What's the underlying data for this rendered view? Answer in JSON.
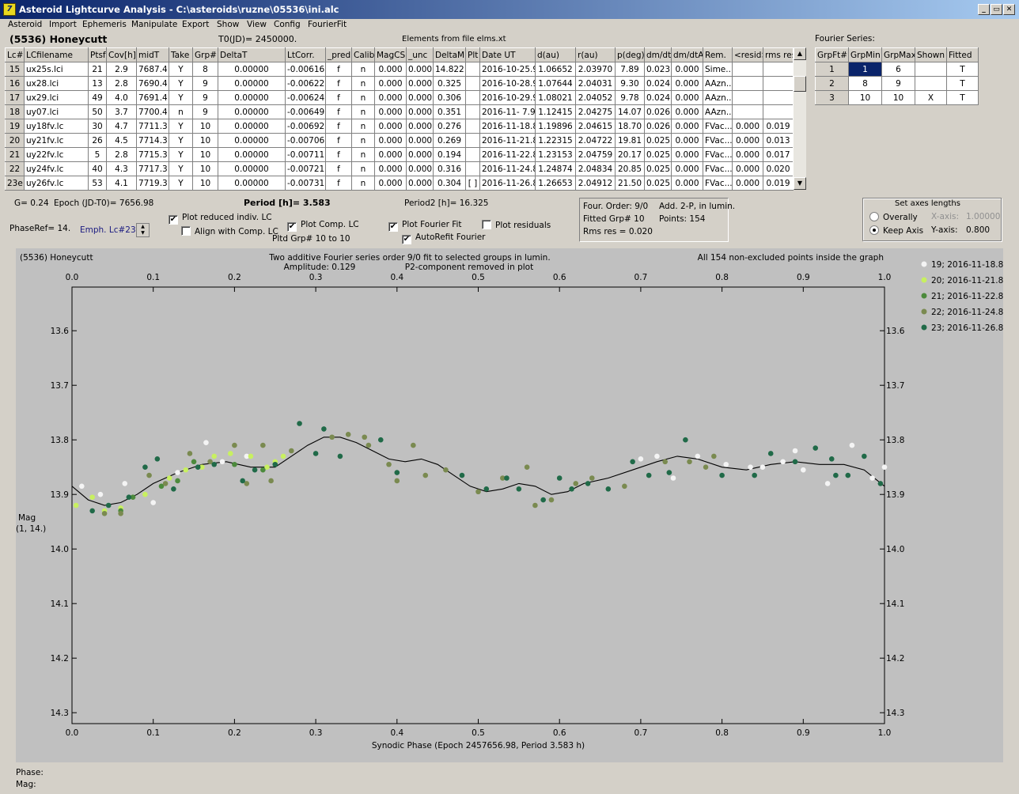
{
  "window": {
    "title": "Asteroid Lightcurve Analysis - C:\\asteroids\\ruzne\\05536\\ini.alc",
    "controls": [
      "_",
      "▭",
      "✕"
    ]
  },
  "menu": [
    "Asteroid",
    "Import",
    "Ephemeris",
    "Manipulate",
    "Export",
    "Show",
    "View",
    "Config",
    "FourierFit"
  ],
  "header": {
    "asteroid_name": "(5536) Honeycutt",
    "t0": "T0(JD)= 2450000.",
    "elements_source": "Elements from file elms.xt"
  },
  "lc_table": {
    "columns": [
      "Lc#",
      "LCfilename",
      "Ptsf",
      "Cov[h]",
      "midT",
      "Take",
      "Grp#",
      "DeltaT",
      "LtCorr.",
      "_pred.",
      "Calib.",
      "MagCS",
      "_unc",
      "DeltaM",
      "Plt",
      "Date UT",
      "d(au)",
      "r(au)",
      "p(deg)",
      "dm/dt",
      "dm/dtA",
      "Rem.",
      "<resid>",
      "rms res"
    ],
    "rows": [
      [
        "15",
        "ux25s.lci",
        "21",
        "2.9",
        "7687.4",
        "Y",
        "8",
        "0.00000",
        "-0.00616",
        "f",
        "n",
        "0.000",
        "0.000",
        "14.822",
        "",
        "2016-10-25.9",
        "1.06652",
        "2.03970",
        "7.89",
        "0.023",
        "0.000",
        "Sime...",
        "",
        ""
      ],
      [
        "16",
        "ux28.lci",
        "13",
        "2.8",
        "7690.4",
        "Y",
        "9",
        "0.00000",
        "-0.00622",
        "f",
        "n",
        "0.000",
        "0.000",
        "0.325",
        "",
        "2016-10-28.9",
        "1.07644",
        "2.04031",
        "9.30",
        "0.024",
        "0.000",
        "AAzn...",
        "",
        ""
      ],
      [
        "17",
        "ux29.lci",
        "49",
        "4.0",
        "7691.4",
        "Y",
        "9",
        "0.00000",
        "-0.00624",
        "f",
        "n",
        "0.000",
        "0.000",
        "0.306",
        "",
        "2016-10-29.9",
        "1.08021",
        "2.04052",
        "9.78",
        "0.024",
        "0.000",
        "AAzn...",
        "",
        ""
      ],
      [
        "18",
        "uy07.lci",
        "50",
        "3.7",
        "7700.4",
        "n",
        "9",
        "0.00000",
        "-0.00649",
        "f",
        "n",
        "0.000",
        "0.000",
        "0.351",
        "",
        "2016-11- 7.9",
        "1.12415",
        "2.04275",
        "14.07",
        "0.026",
        "0.000",
        "AAzn...",
        "",
        ""
      ],
      [
        "19",
        "uy18fv.lc",
        "30",
        "4.7",
        "7711.3",
        "Y",
        "10",
        "0.00000",
        "-0.00692",
        "f",
        "n",
        "0.000",
        "0.000",
        "0.276",
        "",
        "2016-11-18.8",
        "1.19896",
        "2.04615",
        "18.70",
        "0.026",
        "0.000",
        "FVac...",
        "0.000",
        "0.019"
      ],
      [
        "20",
        "uy21fv.lc",
        "26",
        "4.5",
        "7714.3",
        "Y",
        "10",
        "0.00000",
        "-0.00706",
        "f",
        "n",
        "0.000",
        "0.000",
        "0.269",
        "",
        "2016-11-21.8",
        "1.22315",
        "2.04722",
        "19.81",
        "0.025",
        "0.000",
        "FVac...",
        "0.000",
        "0.013"
      ],
      [
        "21",
        "uy22fv.lc",
        "5",
        "2.8",
        "7715.3",
        "Y",
        "10",
        "0.00000",
        "-0.00711",
        "f",
        "n",
        "0.000",
        "0.000",
        "0.194",
        "",
        "2016-11-22.8",
        "1.23153",
        "2.04759",
        "20.17",
        "0.025",
        "0.000",
        "FVac...",
        "0.000",
        "0.017"
      ],
      [
        "22",
        "uy24fv.lc",
        "40",
        "4.3",
        "7717.3",
        "Y",
        "10",
        "0.00000",
        "-0.00721",
        "f",
        "n",
        "0.000",
        "0.000",
        "0.316",
        "",
        "2016-11-24.8",
        "1.24874",
        "2.04834",
        "20.85",
        "0.025",
        "0.000",
        "FVac...",
        "0.000",
        "0.020"
      ],
      [
        "23e",
        "uy26fv.lc",
        "53",
        "4.1",
        "7719.3",
        "Y",
        "10",
        "0.00000",
        "-0.00731",
        "f",
        "n",
        "0.000",
        "0.000",
        "0.304",
        "[ ]",
        "2016-11-26.8",
        "1.26653",
        "2.04912",
        "21.50",
        "0.025",
        "0.000",
        "FVac...",
        "0.000",
        "0.019"
      ]
    ]
  },
  "fourier_series": {
    "label": "Fourier Series:",
    "columns": [
      "GrpFt#",
      "GrpMin",
      "GrpMax",
      "Shown",
      "Fitted"
    ],
    "rows": [
      [
        "1",
        "1",
        "6",
        "",
        "T"
      ],
      [
        "2",
        "8",
        "9",
        "",
        "T"
      ],
      [
        "3",
        "10",
        "10",
        "X",
        "T"
      ]
    ]
  },
  "controls": {
    "g": "G= 0.24",
    "epoch": "Epoch (JD-T0)= 7656.98",
    "period": "Period [h]= 3.583",
    "period2": "Period2 [h]= 16.325",
    "phase_ref": "PhaseRef= 14.",
    "emph_lc": "Emph. Lc#23:",
    "plot_reduced": "Plot reduced indiv. LC",
    "align_comp": "Align with Comp. LC",
    "plot_comp": "Plot Comp. LC",
    "pltd_grp": "Pltd Grp#  10 to   10",
    "plot_fourier": "Plot Fourier Fit",
    "autorefit": "AutoRefit Fourier",
    "plot_residuals": "Plot residuals",
    "checked": "✔"
  },
  "fit_info": {
    "four_order": "Four. Order:  9/0",
    "add": "Add. 2-P, in lumin.",
    "fitted_grp": "Fitted Grp# 10",
    "points": "Points: 154",
    "rms": "Rms res      = 0.020"
  },
  "axes_box": {
    "title": "Set axes lengths",
    "overall": "Overally",
    "keep_axis": "Keep Axis",
    "x_axis_label": "X-axis:",
    "x_axis_value": "1.00000",
    "y_axis_label": "Y-axis:",
    "y_axis_value": "0.800"
  },
  "plot_header": {
    "name": "(5536) Honeycutt",
    "fit_desc": "Two additive Fourier series order 9/0 fit to selected groups in lumin.",
    "amplitude": "Amplitude: 0.129",
    "p2_removed": "P2-component removed in plot",
    "points_note": "All 154 non-excluded points inside the graph"
  },
  "status": {
    "phase": "Phase:",
    "mag": "Mag:"
  },
  "chart_data": {
    "type": "scatter",
    "xlabel": "Synodic Phase (Epoch 2457656.98, Period 3.583 h)",
    "ylabel": "Mag",
    "ylabel2": "(1, 14.)",
    "xlim": [
      0,
      1
    ],
    "ylim": [
      14.32,
      13.52
    ],
    "x_ticks": [
      "0.0",
      "0.1",
      "0.2",
      "0.3",
      "0.4",
      "0.5",
      "0.6",
      "0.7",
      "0.8",
      "0.9",
      "1.0"
    ],
    "y_ticks": [
      "13.6",
      "13.7",
      "13.8",
      "13.9",
      "14.0",
      "14.1",
      "14.2",
      "14.3"
    ],
    "y_tick_values": [
      13.6,
      13.7,
      13.8,
      13.9,
      14.0,
      14.1,
      14.2,
      14.3
    ],
    "series": [
      {
        "name": "19; 2016-11-18.8",
        "color": "#f4f4f4",
        "points": [
          [
            0.012,
            13.885
          ],
          [
            0.035,
            13.9
          ],
          [
            0.065,
            13.88
          ],
          [
            0.1,
            13.915
          ],
          [
            0.13,
            13.86
          ],
          [
            0.165,
            13.805
          ],
          [
            0.185,
            13.84
          ],
          [
            0.215,
            13.83
          ],
          [
            0.7,
            13.835
          ],
          [
            0.72,
            13.83
          ],
          [
            0.74,
            13.87
          ],
          [
            0.77,
            13.83
          ],
          [
            0.78,
            13.85
          ],
          [
            0.805,
            13.845
          ],
          [
            0.835,
            13.85
          ],
          [
            0.85,
            13.85
          ],
          [
            0.875,
            13.84
          ],
          [
            0.89,
            13.82
          ],
          [
            0.9,
            13.855
          ],
          [
            0.93,
            13.88
          ],
          [
            0.96,
            13.81
          ],
          [
            0.985,
            13.87
          ],
          [
            1.0,
            13.85
          ]
        ]
      },
      {
        "name": "20; 2016-11-21.8",
        "color": "#c8f060",
        "points": [
          [
            0.005,
            13.92
          ],
          [
            0.025,
            13.905
          ],
          [
            0.04,
            13.93
          ],
          [
            0.06,
            13.925
          ],
          [
            0.09,
            13.9
          ],
          [
            0.12,
            13.87
          ],
          [
            0.14,
            13.855
          ],
          [
            0.16,
            13.85
          ],
          [
            0.175,
            13.83
          ],
          [
            0.195,
            13.825
          ],
          [
            0.22,
            13.83
          ],
          [
            0.24,
            13.85
          ],
          [
            0.25,
            13.84
          ],
          [
            0.26,
            13.83
          ]
        ]
      },
      {
        "name": "21; 2016-11-22.8",
        "color": "#4c8a3c",
        "points": [
          [
            0.06,
            13.93
          ],
          [
            0.075,
            13.905
          ],
          [
            0.11,
            13.885
          ],
          [
            0.13,
            13.875
          ],
          [
            0.15,
            13.84
          ],
          [
            0.2,
            13.845
          ],
          [
            0.235,
            13.855
          ]
        ]
      },
      {
        "name": "22; 2016-11-24.8",
        "color": "#7a8a50",
        "points": [
          [
            0.04,
            13.935
          ],
          [
            0.06,
            13.935
          ],
          [
            0.095,
            13.865
          ],
          [
            0.115,
            13.88
          ],
          [
            0.145,
            13.825
          ],
          [
            0.17,
            13.84
          ],
          [
            0.2,
            13.81
          ],
          [
            0.215,
            13.88
          ],
          [
            0.235,
            13.81
          ],
          [
            0.245,
            13.875
          ],
          [
            0.27,
            13.82
          ],
          [
            0.32,
            13.795
          ],
          [
            0.34,
            13.79
          ],
          [
            0.36,
            13.795
          ],
          [
            0.365,
            13.81
          ],
          [
            0.39,
            13.845
          ],
          [
            0.4,
            13.875
          ],
          [
            0.42,
            13.81
          ],
          [
            0.435,
            13.865
          ],
          [
            0.46,
            13.855
          ],
          [
            0.5,
            13.895
          ],
          [
            0.53,
            13.87
          ],
          [
            0.56,
            13.85
          ],
          [
            0.57,
            13.92
          ],
          [
            0.59,
            13.91
          ],
          [
            0.62,
            13.88
          ],
          [
            0.64,
            13.87
          ],
          [
            0.68,
            13.885
          ],
          [
            0.73,
            13.84
          ],
          [
            0.76,
            13.84
          ],
          [
            0.78,
            13.85
          ],
          [
            0.79,
            13.83
          ]
        ]
      },
      {
        "name": "23; 2016-11-26.8",
        "color": "#206a48",
        "points": [
          [
            0.025,
            13.93
          ],
          [
            0.045,
            13.92
          ],
          [
            0.07,
            13.905
          ],
          [
            0.09,
            13.85
          ],
          [
            0.105,
            13.835
          ],
          [
            0.125,
            13.89
          ],
          [
            0.155,
            13.85
          ],
          [
            0.175,
            13.845
          ],
          [
            0.21,
            13.875
          ],
          [
            0.225,
            13.855
          ],
          [
            0.25,
            13.845
          ],
          [
            0.28,
            13.77
          ],
          [
            0.3,
            13.825
          ],
          [
            0.31,
            13.78
          ],
          [
            0.33,
            13.83
          ],
          [
            0.38,
            13.8
          ],
          [
            0.4,
            13.86
          ],
          [
            0.48,
            13.865
          ],
          [
            0.51,
            13.89
          ],
          [
            0.535,
            13.87
          ],
          [
            0.55,
            13.89
          ],
          [
            0.58,
            13.91
          ],
          [
            0.6,
            13.87
          ],
          [
            0.615,
            13.89
          ],
          [
            0.635,
            13.88
          ],
          [
            0.66,
            13.89
          ],
          [
            0.69,
            13.84
          ],
          [
            0.71,
            13.865
          ],
          [
            0.735,
            13.86
          ],
          [
            0.755,
            13.8
          ],
          [
            0.8,
            13.865
          ],
          [
            0.84,
            13.865
          ],
          [
            0.86,
            13.825
          ],
          [
            0.89,
            13.84
          ],
          [
            0.915,
            13.815
          ],
          [
            0.935,
            13.835
          ],
          [
            0.94,
            13.865
          ],
          [
            0.955,
            13.865
          ],
          [
            0.975,
            13.83
          ],
          [
            0.995,
            13.88
          ]
        ]
      }
    ],
    "fit_curve": [
      [
        0,
        13.885
      ],
      [
        0.02,
        13.91
      ],
      [
        0.04,
        13.92
      ],
      [
        0.06,
        13.915
      ],
      [
        0.08,
        13.9
      ],
      [
        0.1,
        13.88
      ],
      [
        0.13,
        13.86
      ],
      [
        0.16,
        13.845
      ],
      [
        0.19,
        13.84
      ],
      [
        0.22,
        13.85
      ],
      [
        0.25,
        13.85
      ],
      [
        0.27,
        13.83
      ],
      [
        0.29,
        13.81
      ],
      [
        0.31,
        13.795
      ],
      [
        0.33,
        13.795
      ],
      [
        0.35,
        13.805
      ],
      [
        0.37,
        13.82
      ],
      [
        0.39,
        13.835
      ],
      [
        0.41,
        13.84
      ],
      [
        0.43,
        13.835
      ],
      [
        0.45,
        13.845
      ],
      [
        0.47,
        13.865
      ],
      [
        0.49,
        13.885
      ],
      [
        0.51,
        13.895
      ],
      [
        0.53,
        13.89
      ],
      [
        0.55,
        13.88
      ],
      [
        0.57,
        13.885
      ],
      [
        0.59,
        13.9
      ],
      [
        0.61,
        13.895
      ],
      [
        0.63,
        13.88
      ],
      [
        0.66,
        13.87
      ],
      [
        0.69,
        13.855
      ],
      [
        0.72,
        13.84
      ],
      [
        0.745,
        13.83
      ],
      [
        0.77,
        13.835
      ],
      [
        0.8,
        13.85
      ],
      [
        0.83,
        13.855
      ],
      [
        0.86,
        13.845
      ],
      [
        0.89,
        13.84
      ],
      [
        0.92,
        13.845
      ],
      [
        0.95,
        13.845
      ],
      [
        0.975,
        13.855
      ],
      [
        1.0,
        13.885
      ]
    ]
  }
}
